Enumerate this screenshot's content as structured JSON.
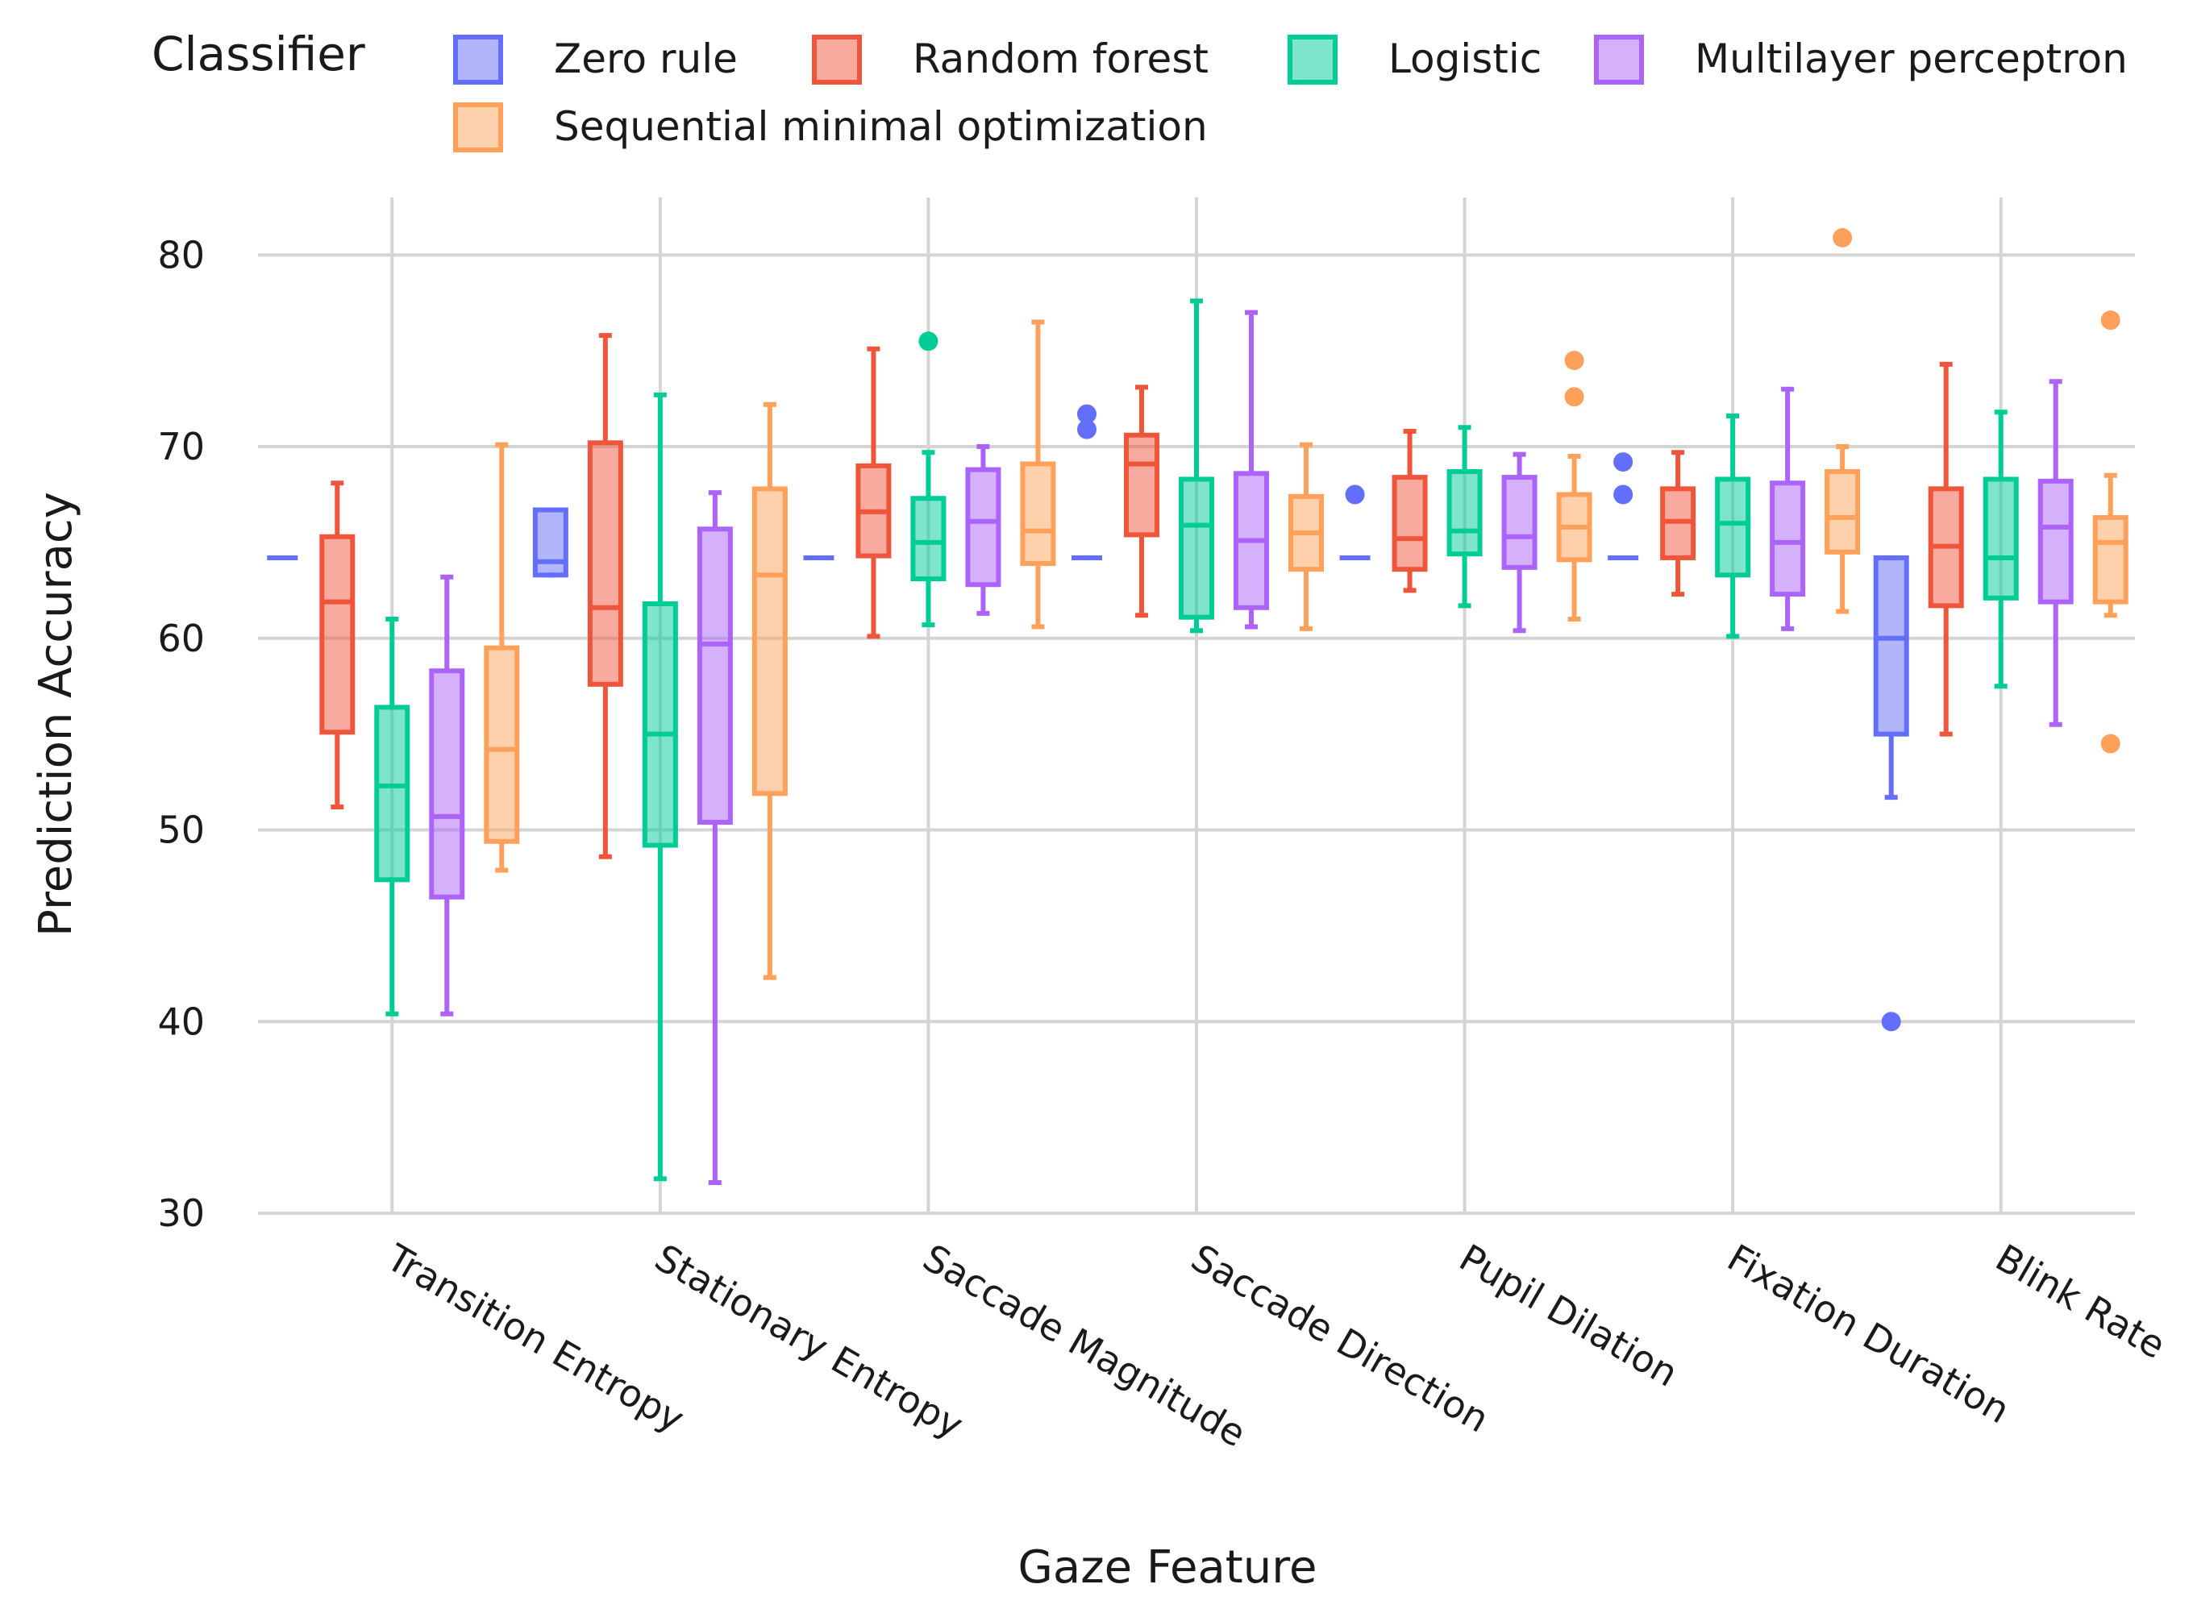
{
  "chart_data": {
    "type": "box",
    "title": "",
    "xlabel": "Gaze Feature",
    "ylabel": "Prediction Accuracy",
    "ylim": [
      30,
      83
    ],
    "yticks": [
      30,
      40,
      50,
      60,
      70,
      80
    ],
    "categories": [
      "Transition Entropy",
      "Stationary Entropy",
      "Saccade Magnitude",
      "Saccade Direction",
      "Pupil Dilation",
      "Fixation Duration",
      "Blink Rate"
    ],
    "legend": {
      "title": "Classifier",
      "position": "top"
    },
    "series": [
      {
        "name": "Zero rule",
        "color": "#636efa",
        "boxes": [
          {
            "min": 64.2,
            "q1": 64.2,
            "median": 64.2,
            "q3": 64.2,
            "max": 64.2,
            "outliers": []
          },
          {
            "min": 63.3,
            "q1": 63.3,
            "median": 64.0,
            "q3": 66.7,
            "max": 66.7,
            "outliers": []
          },
          {
            "min": 64.2,
            "q1": 64.2,
            "median": 64.2,
            "q3": 64.2,
            "max": 64.2,
            "outliers": []
          },
          {
            "min": 64.2,
            "q1": 64.2,
            "median": 64.2,
            "q3": 64.2,
            "max": 64.2,
            "outliers": [
              70.9,
              71.7
            ]
          },
          {
            "min": 64.2,
            "q1": 64.2,
            "median": 64.2,
            "q3": 64.2,
            "max": 64.2,
            "outliers": [
              67.5
            ]
          },
          {
            "min": 64.2,
            "q1": 64.2,
            "median": 64.2,
            "q3": 64.2,
            "max": 64.2,
            "outliers": [
              67.5,
              69.2
            ]
          },
          {
            "min": 51.7,
            "q1": 55.0,
            "median": 60.0,
            "q3": 64.2,
            "max": 64.2,
            "outliers": [
              40.0
            ]
          }
        ]
      },
      {
        "name": "Random forest",
        "color": "#ef553b",
        "boxes": [
          {
            "min": 51.2,
            "q1": 55.1,
            "median": 61.9,
            "q3": 65.3,
            "max": 68.1,
            "outliers": []
          },
          {
            "min": 48.6,
            "q1": 57.6,
            "median": 61.6,
            "q3": 70.2,
            "max": 75.8,
            "outliers": []
          },
          {
            "min": 60.1,
            "q1": 64.3,
            "median": 66.6,
            "q3": 69.0,
            "max": 75.1,
            "outliers": []
          },
          {
            "min": 61.2,
            "q1": 65.4,
            "median": 69.1,
            "q3": 70.6,
            "max": 73.1,
            "outliers": []
          },
          {
            "min": 62.5,
            "q1": 63.6,
            "median": 65.2,
            "q3": 68.4,
            "max": 70.8,
            "outliers": []
          },
          {
            "min": 62.3,
            "q1": 64.2,
            "median": 66.1,
            "q3": 67.8,
            "max": 69.7,
            "outliers": []
          },
          {
            "min": 55.0,
            "q1": 61.7,
            "median": 64.8,
            "q3": 67.8,
            "max": 74.3,
            "outliers": []
          }
        ]
      },
      {
        "name": "Logistic",
        "color": "#00cc96",
        "boxes": [
          {
            "min": 40.4,
            "q1": 47.4,
            "median": 52.3,
            "q3": 56.4,
            "max": 61.0,
            "outliers": []
          },
          {
            "min": 31.8,
            "q1": 49.2,
            "median": 55.0,
            "q3": 61.8,
            "max": 72.7,
            "outliers": []
          },
          {
            "min": 60.7,
            "q1": 63.1,
            "median": 65.0,
            "q3": 67.3,
            "max": 69.7,
            "outliers": [
              75.5
            ]
          },
          {
            "min": 60.4,
            "q1": 61.1,
            "median": 65.9,
            "q3": 68.3,
            "max": 77.6,
            "outliers": []
          },
          {
            "min": 61.7,
            "q1": 64.4,
            "median": 65.6,
            "q3": 68.7,
            "max": 71.0,
            "outliers": []
          },
          {
            "min": 60.1,
            "q1": 63.3,
            "median": 66.0,
            "q3": 68.3,
            "max": 71.6,
            "outliers": []
          },
          {
            "min": 57.5,
            "q1": 62.1,
            "median": 64.2,
            "q3": 68.3,
            "max": 71.8,
            "outliers": []
          }
        ]
      },
      {
        "name": "Multilayer perceptron",
        "color": "#ab63fa",
        "boxes": [
          {
            "min": 40.4,
            "q1": 46.5,
            "median": 50.7,
            "q3": 58.3,
            "max": 63.2,
            "outliers": []
          },
          {
            "min": 31.6,
            "q1": 50.4,
            "median": 59.7,
            "q3": 65.7,
            "max": 67.6,
            "outliers": []
          },
          {
            "min": 61.3,
            "q1": 62.8,
            "median": 66.1,
            "q3": 68.8,
            "max": 70.0,
            "outliers": []
          },
          {
            "min": 60.6,
            "q1": 61.6,
            "median": 65.1,
            "q3": 68.6,
            "max": 77.0,
            "outliers": []
          },
          {
            "min": 60.4,
            "q1": 63.7,
            "median": 65.3,
            "q3": 68.4,
            "max": 69.6,
            "outliers": []
          },
          {
            "min": 60.5,
            "q1": 62.3,
            "median": 65.0,
            "q3": 68.1,
            "max": 73.0,
            "outliers": []
          },
          {
            "min": 55.5,
            "q1": 61.9,
            "median": 65.8,
            "q3": 68.2,
            "max": 73.4,
            "outliers": []
          }
        ]
      },
      {
        "name": "Sequential minimal optimization",
        "color": "#ffa15a",
        "boxes": [
          {
            "min": 47.9,
            "q1": 49.4,
            "median": 54.2,
            "q3": 59.5,
            "max": 70.1,
            "outliers": []
          },
          {
            "min": 42.3,
            "q1": 51.9,
            "median": 63.3,
            "q3": 67.8,
            "max": 72.2,
            "outliers": []
          },
          {
            "min": 60.6,
            "q1": 63.9,
            "median": 65.6,
            "q3": 69.1,
            "max": 76.5,
            "outliers": []
          },
          {
            "min": 60.5,
            "q1": 63.6,
            "median": 65.5,
            "q3": 67.4,
            "max": 70.1,
            "outliers": []
          },
          {
            "min": 61.0,
            "q1": 64.1,
            "median": 65.8,
            "q3": 67.5,
            "max": 69.5,
            "outliers": [
              72.6,
              74.5
            ]
          },
          {
            "min": 61.4,
            "q1": 64.5,
            "median": 66.3,
            "q3": 68.7,
            "max": 70.0,
            "outliers": [
              80.9
            ]
          },
          {
            "min": 61.2,
            "q1": 61.9,
            "median": 65.0,
            "q3": 66.3,
            "max": 68.5,
            "outliers": [
              54.5,
              76.6
            ]
          }
        ]
      }
    ]
  }
}
